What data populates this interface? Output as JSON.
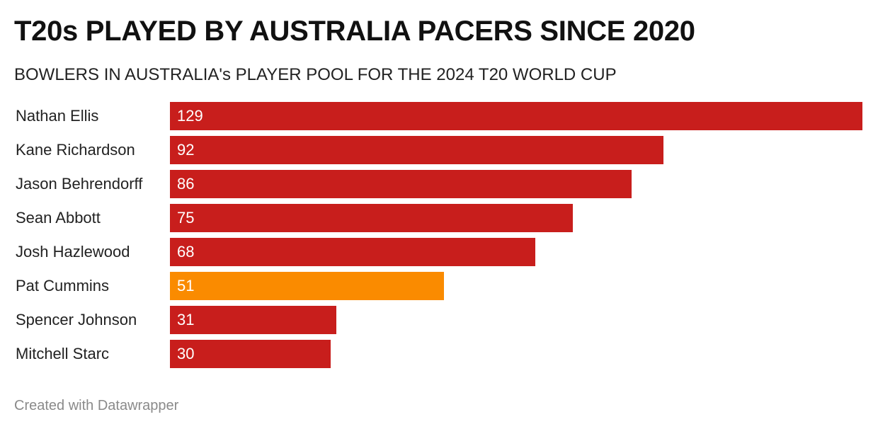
{
  "header": {
    "title": "T20s PLAYED BY AUSTRALIA PACERS SINCE 2020",
    "subtitle": "BOWLERS IN AUSTRALIA's PLAYER POOL FOR THE 2024 T20 WORLD CUP"
  },
  "footer": {
    "credit": "Created with Datawrapper"
  },
  "colors": {
    "default_bar": "#c81e1c",
    "highlight_bar": "#fa8b00"
  },
  "chart_data": {
    "type": "bar",
    "orientation": "horizontal",
    "title": "T20s PLAYED BY AUSTRALIA PACERS SINCE 2020",
    "subtitle": "BOWLERS IN AUSTRALIA's PLAYER POOL FOR THE 2024 T20 WORLD CUP",
    "categories": [
      "Nathan Ellis",
      "Kane Richardson",
      "Jason Behrendorff",
      "Sean Abbott",
      "Josh Hazlewood",
      "Pat Cummins",
      "Spencer Johnson",
      "Mitchell Starc"
    ],
    "values": [
      129,
      92,
      86,
      75,
      68,
      51,
      31,
      30
    ],
    "highlighted": [
      "Pat Cummins"
    ],
    "xlim": [
      0,
      129
    ],
    "grid": false,
    "legend": "none",
    "data_labels": "inside-left"
  }
}
